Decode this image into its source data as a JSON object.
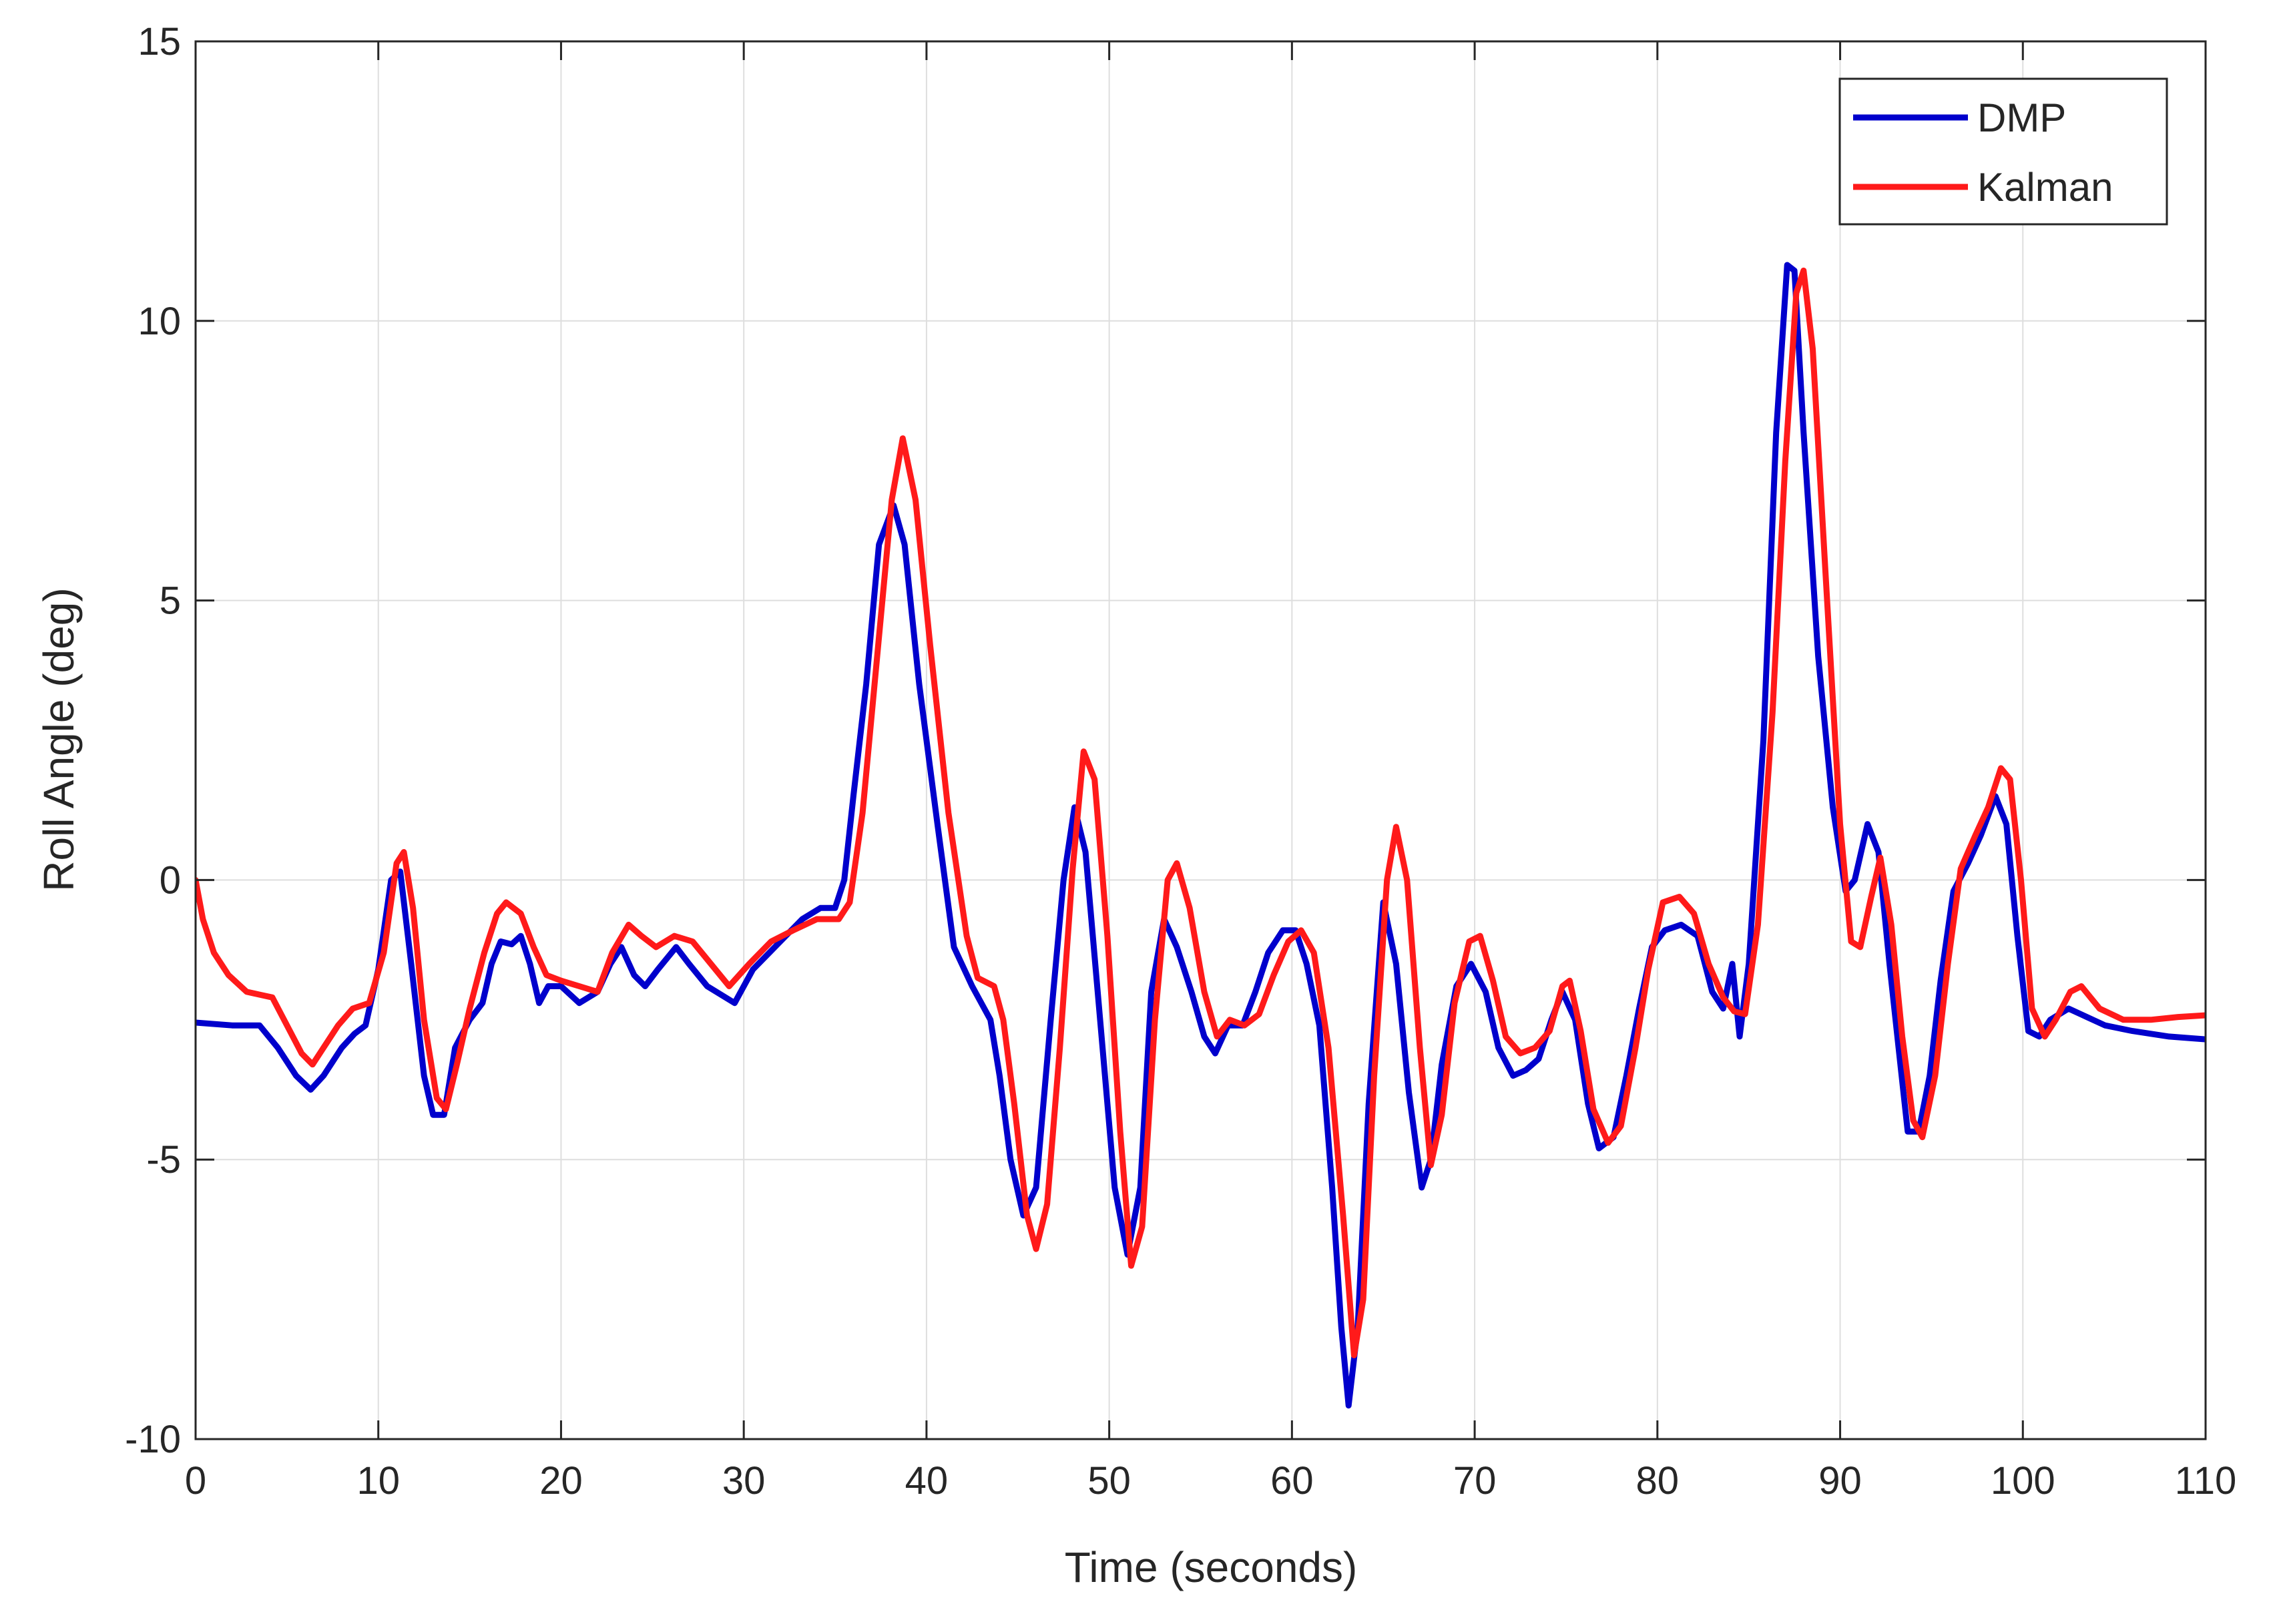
{
  "chart_data": {
    "type": "line",
    "title": "",
    "xlabel": "Time (seconds)",
    "ylabel": "Roll Angle (deg)",
    "xlim": [
      0,
      110
    ],
    "ylim": [
      -10,
      15
    ],
    "xticks": [
      0,
      10,
      20,
      30,
      40,
      50,
      60,
      70,
      80,
      90,
      100,
      110
    ],
    "yticks": [
      -10,
      -5,
      0,
      5,
      10,
      15
    ],
    "xtick_labels": [
      "0",
      "10",
      "20",
      "30",
      "40",
      "50",
      "60",
      "70",
      "80",
      "90",
      "100",
      "110"
    ],
    "ytick_labels": [
      "-10",
      "-5",
      "0",
      "5",
      "10",
      "15"
    ],
    "grid": true,
    "legend_position": "top-right",
    "series": [
      {
        "name": "DMP",
        "color": "#0000CC",
        "points": [
          [
            0,
            -2.55
          ],
          [
            2,
            -2.6
          ],
          [
            3.5,
            -2.6
          ],
          [
            4.5,
            -3.0
          ],
          [
            5.5,
            -3.5
          ],
          [
            6.3,
            -3.75
          ],
          [
            7,
            -3.5
          ],
          [
            8,
            -3.0
          ],
          [
            8.7,
            -2.75
          ],
          [
            9.3,
            -2.6
          ],
          [
            10,
            -1.6
          ],
          [
            10.7,
            0.0
          ],
          [
            11.2,
            0.15
          ],
          [
            11.8,
            -1.5
          ],
          [
            12.5,
            -3.5
          ],
          [
            13,
            -4.2
          ],
          [
            13.6,
            -4.2
          ],
          [
            14.2,
            -3.0
          ],
          [
            15,
            -2.5
          ],
          [
            15.7,
            -2.2
          ],
          [
            16.2,
            -1.5
          ],
          [
            16.7,
            -1.1
          ],
          [
            17.3,
            -1.15
          ],
          [
            17.8,
            -1.0
          ],
          [
            18.3,
            -1.5
          ],
          [
            18.8,
            -2.2
          ],
          [
            19.3,
            -1.9
          ],
          [
            20,
            -1.9
          ],
          [
            21,
            -2.2
          ],
          [
            22,
            -2.0
          ],
          [
            22.7,
            -1.5
          ],
          [
            23.3,
            -1.2
          ],
          [
            24,
            -1.7
          ],
          [
            24.6,
            -1.9
          ],
          [
            25.3,
            -1.6
          ],
          [
            26.3,
            -1.2
          ],
          [
            27,
            -1.5
          ],
          [
            28,
            -1.9
          ],
          [
            29.5,
            -2.2
          ],
          [
            30.5,
            -1.6
          ],
          [
            32,
            -1.1
          ],
          [
            33.2,
            -0.7
          ],
          [
            34.2,
            -0.5
          ],
          [
            35,
            -0.5
          ],
          [
            35.5,
            0.0
          ],
          [
            36,
            1.5
          ],
          [
            36.7,
            3.5
          ],
          [
            37.4,
            6.0
          ],
          [
            38.2,
            6.7
          ],
          [
            38.8,
            6.0
          ],
          [
            39.6,
            3.5
          ],
          [
            40.6,
            1.0
          ],
          [
            41.5,
            -1.2
          ],
          [
            42.5,
            -1.9
          ],
          [
            43.5,
            -2.5
          ],
          [
            44,
            -3.5
          ],
          [
            44.6,
            -5.0
          ],
          [
            45.3,
            -6.0
          ],
          [
            46,
            -5.5
          ],
          [
            46.8,
            -2.5
          ],
          [
            47.5,
            0.0
          ],
          [
            48.1,
            1.3
          ],
          [
            48.7,
            0.5
          ],
          [
            49.5,
            -2.5
          ],
          [
            50.3,
            -5.5
          ],
          [
            51,
            -6.7
          ],
          [
            51.7,
            -5.5
          ],
          [
            52.3,
            -2.0
          ],
          [
            53,
            -0.7
          ],
          [
            53.7,
            -1.2
          ],
          [
            54.5,
            -2.0
          ],
          [
            55.2,
            -2.8
          ],
          [
            55.8,
            -3.1
          ],
          [
            56.5,
            -2.6
          ],
          [
            57.3,
            -2.6
          ],
          [
            58,
            -2.0
          ],
          [
            58.7,
            -1.3
          ],
          [
            59.5,
            -0.9
          ],
          [
            60.2,
            -0.9
          ],
          [
            60.8,
            -1.5
          ],
          [
            61.5,
            -2.6
          ],
          [
            62.2,
            -5.5
          ],
          [
            62.7,
            -8.0
          ],
          [
            63.1,
            -9.4
          ],
          [
            63.6,
            -8.0
          ],
          [
            64.2,
            -4.0
          ],
          [
            65,
            -0.4
          ],
          [
            65.7,
            -1.5
          ],
          [
            66.4,
            -3.8
          ],
          [
            67.1,
            -5.5
          ],
          [
            67.6,
            -5.0
          ],
          [
            68.2,
            -3.3
          ],
          [
            69,
            -1.9
          ],
          [
            69.8,
            -1.5
          ],
          [
            70.6,
            -2.0
          ],
          [
            71.3,
            -3.0
          ],
          [
            72.1,
            -3.5
          ],
          [
            72.8,
            -3.4
          ],
          [
            73.5,
            -3.2
          ],
          [
            74.2,
            -2.5
          ],
          [
            74.8,
            -2.0
          ],
          [
            75.5,
            -2.5
          ],
          [
            76.2,
            -4.0
          ],
          [
            76.8,
            -4.8
          ],
          [
            77.6,
            -4.6
          ],
          [
            78.3,
            -3.5
          ],
          [
            79,
            -2.3
          ],
          [
            79.7,
            -1.2
          ],
          [
            80.4,
            -0.9
          ],
          [
            81.3,
            -0.8
          ],
          [
            82.2,
            -1.0
          ],
          [
            83,
            -2.0
          ],
          [
            83.6,
            -2.3
          ],
          [
            84.1,
            -1.5
          ],
          [
            84.5,
            -2.8
          ],
          [
            85,
            -1.5
          ],
          [
            85.8,
            2.5
          ],
          [
            86.5,
            8.0
          ],
          [
            87.1,
            11.0
          ],
          [
            87.5,
            10.9
          ],
          [
            88,
            8.0
          ],
          [
            88.8,
            4.0
          ],
          [
            89.6,
            1.3
          ],
          [
            90.3,
            -0.2
          ],
          [
            90.8,
            0.0
          ],
          [
            91.5,
            1.0
          ],
          [
            92.1,
            0.5
          ],
          [
            92.7,
            -1.5
          ],
          [
            93.2,
            -3.0
          ],
          [
            93.7,
            -4.5
          ],
          [
            94.3,
            -4.5
          ],
          [
            94.9,
            -3.5
          ],
          [
            95.5,
            -1.8
          ],
          [
            96.2,
            -0.2
          ],
          [
            97,
            0.3
          ],
          [
            97.7,
            0.8
          ],
          [
            98.5,
            1.5
          ],
          [
            99.1,
            1.0
          ],
          [
            99.7,
            -1.0
          ],
          [
            100.3,
            -2.7
          ],
          [
            100.9,
            -2.8
          ],
          [
            101.5,
            -2.5
          ],
          [
            102.5,
            -2.3
          ],
          [
            103.5,
            -2.45
          ],
          [
            104.5,
            -2.6
          ],
          [
            106,
            -2.7
          ],
          [
            108,
            -2.8
          ],
          [
            110,
            -2.85
          ]
        ]
      },
      {
        "name": "Kalman",
        "color": "#FF1A1A",
        "points": [
          [
            0,
            0.0
          ],
          [
            0.4,
            -0.7
          ],
          [
            1,
            -1.3
          ],
          [
            1.8,
            -1.7
          ],
          [
            2.8,
            -2.0
          ],
          [
            3.5,
            -2.05
          ],
          [
            4.2,
            -2.1
          ],
          [
            5,
            -2.6
          ],
          [
            5.8,
            -3.1
          ],
          [
            6.4,
            -3.3
          ],
          [
            7,
            -3.0
          ],
          [
            7.8,
            -2.6
          ],
          [
            8.6,
            -2.3
          ],
          [
            9.5,
            -2.2
          ],
          [
            10.3,
            -1.3
          ],
          [
            11,
            0.3
          ],
          [
            11.4,
            0.5
          ],
          [
            11.9,
            -0.5
          ],
          [
            12.5,
            -2.5
          ],
          [
            13.2,
            -3.9
          ],
          [
            13.7,
            -4.1
          ],
          [
            14.3,
            -3.3
          ],
          [
            15,
            -2.3
          ],
          [
            15.8,
            -1.3
          ],
          [
            16.5,
            -0.6
          ],
          [
            17,
            -0.4
          ],
          [
            17.8,
            -0.6
          ],
          [
            18.5,
            -1.2
          ],
          [
            19.2,
            -1.7
          ],
          [
            20,
            -1.8
          ],
          [
            21,
            -1.9
          ],
          [
            22,
            -2.0
          ],
          [
            22.8,
            -1.3
          ],
          [
            23.7,
            -0.8
          ],
          [
            24.4,
            -1.0
          ],
          [
            25.2,
            -1.2
          ],
          [
            26.2,
            -1.0
          ],
          [
            27.2,
            -1.1
          ],
          [
            28.2,
            -1.5
          ],
          [
            29.2,
            -1.9
          ],
          [
            30.3,
            -1.5
          ],
          [
            31.5,
            -1.1
          ],
          [
            32.7,
            -0.9
          ],
          [
            34,
            -0.7
          ],
          [
            35.2,
            -0.7
          ],
          [
            35.8,
            -0.4
          ],
          [
            36.5,
            1.2
          ],
          [
            37.3,
            4.0
          ],
          [
            38.1,
            6.8
          ],
          [
            38.7,
            7.9
          ],
          [
            39.4,
            6.8
          ],
          [
            40.2,
            4.2
          ],
          [
            41.2,
            1.2
          ],
          [
            42.2,
            -1.0
          ],
          [
            42.8,
            -1.75
          ],
          [
            43.7,
            -1.9
          ],
          [
            44.2,
            -2.5
          ],
          [
            44.8,
            -4.0
          ],
          [
            45.5,
            -6.0
          ],
          [
            46,
            -6.6
          ],
          [
            46.6,
            -5.8
          ],
          [
            47.3,
            -3.0
          ],
          [
            48,
            0.2
          ],
          [
            48.6,
            2.3
          ],
          [
            49.2,
            1.8
          ],
          [
            49.9,
            -1.0
          ],
          [
            50.6,
            -4.5
          ],
          [
            51.2,
            -6.9
          ],
          [
            51.8,
            -6.2
          ],
          [
            52.5,
            -2.5
          ],
          [
            53.2,
            0.0
          ],
          [
            53.7,
            0.3
          ],
          [
            54.4,
            -0.5
          ],
          [
            55.2,
            -2.0
          ],
          [
            55.9,
            -2.8
          ],
          [
            56.6,
            -2.5
          ],
          [
            57.4,
            -2.6
          ],
          [
            58.2,
            -2.4
          ],
          [
            59,
            -1.7
          ],
          [
            59.8,
            -1.1
          ],
          [
            60.5,
            -0.9
          ],
          [
            61.2,
            -1.3
          ],
          [
            62,
            -3.0
          ],
          [
            62.8,
            -6.0
          ],
          [
            63.4,
            -8.5
          ],
          [
            63.9,
            -7.5
          ],
          [
            64.5,
            -3.5
          ],
          [
            65.2,
            0.0
          ],
          [
            65.7,
            0.95
          ],
          [
            66.3,
            0.0
          ],
          [
            67,
            -3.0
          ],
          [
            67.6,
            -5.1
          ],
          [
            68.2,
            -4.2
          ],
          [
            68.9,
            -2.2
          ],
          [
            69.7,
            -1.1
          ],
          [
            70.3,
            -1.0
          ],
          [
            71,
            -1.8
          ],
          [
            71.7,
            -2.8
          ],
          [
            72.5,
            -3.1
          ],
          [
            73.3,
            -3.0
          ],
          [
            74.1,
            -2.7
          ],
          [
            74.8,
            -1.9
          ],
          [
            75.2,
            -1.8
          ],
          [
            75.8,
            -2.7
          ],
          [
            76.5,
            -4.1
          ],
          [
            77.3,
            -4.7
          ],
          [
            78,
            -4.4
          ],
          [
            78.8,
            -3.0
          ],
          [
            79.5,
            -1.6
          ],
          [
            80.3,
            -0.4
          ],
          [
            81.2,
            -0.3
          ],
          [
            82,
            -0.6
          ],
          [
            82.8,
            -1.5
          ],
          [
            83.6,
            -2.1
          ],
          [
            84.2,
            -2.35
          ],
          [
            84.8,
            -2.4
          ],
          [
            85.5,
            -0.8
          ],
          [
            86.3,
            3.0
          ],
          [
            87,
            7.5
          ],
          [
            87.6,
            10.5
          ],
          [
            88,
            10.9
          ],
          [
            88.5,
            9.5
          ],
          [
            89.2,
            5.5
          ],
          [
            90,
            1.0
          ],
          [
            90.6,
            -1.1
          ],
          [
            91.1,
            -1.2
          ],
          [
            91.7,
            -0.3
          ],
          [
            92.2,
            0.4
          ],
          [
            92.8,
            -0.8
          ],
          [
            93.4,
            -2.8
          ],
          [
            94,
            -4.3
          ],
          [
            94.5,
            -4.6
          ],
          [
            95.2,
            -3.5
          ],
          [
            95.9,
            -1.5
          ],
          [
            96.6,
            0.2
          ],
          [
            97.4,
            0.8
          ],
          [
            98.1,
            1.3
          ],
          [
            98.8,
            2.0
          ],
          [
            99.3,
            1.8
          ],
          [
            99.9,
            0.0
          ],
          [
            100.5,
            -2.3
          ],
          [
            101.2,
            -2.8
          ],
          [
            101.8,
            -2.5
          ],
          [
            102.6,
            -2.0
          ],
          [
            103.2,
            -1.9
          ],
          [
            104.2,
            -2.3
          ],
          [
            105.5,
            -2.5
          ],
          [
            107,
            -2.5
          ],
          [
            108.5,
            -2.45
          ],
          [
            110,
            -2.42
          ]
        ]
      }
    ]
  }
}
